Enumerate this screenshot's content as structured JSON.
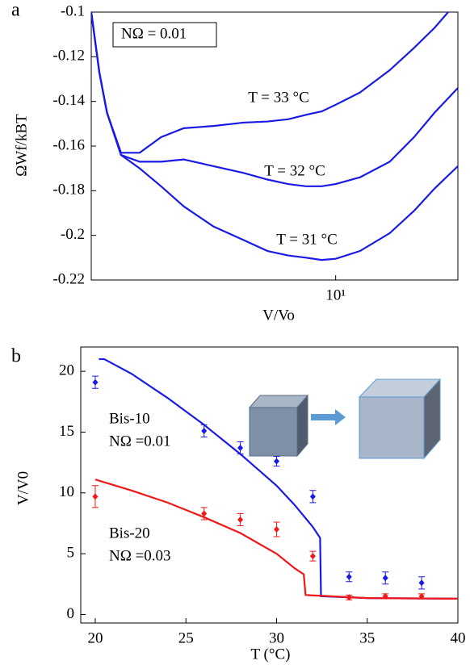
{
  "chart_data": [
    {
      "type": "line",
      "panel_label": "a",
      "xscale": "log",
      "x_label": "V/Vo",
      "y_label": "ΩWf/kBT",
      "annotation": "NΩ = 0.01",
      "xlim": [
        1.6,
        25
      ],
      "xticks": [
        {
          "value": 10,
          "label": "10¹"
        }
      ],
      "ylim": [
        -0.22,
        -0.1
      ],
      "yticks": [
        -0.22,
        -0.2,
        -0.18,
        -0.16,
        -0.14,
        -0.12,
        -0.1
      ],
      "x": [
        1.6,
        1.7,
        1.8,
        2,
        2.3,
        2.7,
        3.2,
        4,
        5,
        6,
        7,
        8,
        9,
        10,
        12,
        15,
        18,
        21,
        25
      ],
      "series": [
        {
          "name": "T = 33 °C",
          "color": "#1a1ae6",
          "values": [
            -0.1,
            -0.127,
            -0.145,
            -0.163,
            -0.163,
            -0.156,
            -0.152,
            -0.151,
            -0.1495,
            -0.149,
            -0.148,
            -0.146,
            -0.1445,
            -0.1415,
            -0.136,
            -0.126,
            -0.116,
            -0.107,
            -0.095
          ]
        },
        {
          "name": "T = 32 °C",
          "color": "#1a1ae6",
          "values": [
            -0.1,
            -0.127,
            -0.145,
            -0.164,
            -0.167,
            -0.167,
            -0.166,
            -0.169,
            -0.172,
            -0.175,
            -0.177,
            -0.178,
            -0.178,
            -0.177,
            -0.174,
            -0.167,
            -0.156,
            -0.145,
            -0.134
          ]
        },
        {
          "name": "T = 31 °C",
          "color": "#1a1ae6",
          "values": [
            -0.1,
            -0.127,
            -0.145,
            -0.164,
            -0.17,
            -0.178,
            -0.187,
            -0.196,
            -0.202,
            -0.207,
            -0.209,
            -0.21,
            -0.211,
            -0.2105,
            -0.207,
            -0.199,
            -0.189,
            -0.179,
            -0.169
          ]
        }
      ]
    },
    {
      "type": "line",
      "panel_label": "b",
      "x_label": "T (°C)",
      "y_label": "V/V0",
      "xlim": [
        19.2,
        40
      ],
      "xticks": [
        20,
        25,
        30,
        35,
        40
      ],
      "ylim": [
        -0.7,
        22
      ],
      "yticks": [
        0,
        5,
        10,
        15,
        20
      ],
      "series": [
        {
          "name": "Bis-10",
          "annotation": "NΩ =0.01",
          "color": "#1a1ae6",
          "x": [
            20.2,
            20.5,
            22,
            24,
            26,
            28,
            30,
            31,
            32,
            32.4,
            32.45,
            35,
            40
          ],
          "values": [
            21,
            21,
            19.8,
            17.8,
            15.6,
            13.2,
            10.6,
            9,
            7.2,
            6.3,
            1.5,
            1.35,
            1.3
          ],
          "points_x": [
            20,
            26,
            28,
            30,
            32,
            34,
            36,
            38
          ],
          "points_values": [
            19.1,
            15.1,
            13.7,
            12.6,
            9.7,
            3.1,
            3.0,
            2.6
          ],
          "points_errors": [
            0.5,
            0.5,
            0.5,
            0.4,
            0.5,
            0.4,
            0.5,
            0.5
          ]
        },
        {
          "name": "Bis-20",
          "annotation": "NΩ =0.03",
          "color": "#f01818",
          "x": [
            20,
            22,
            24,
            26,
            28,
            30,
            31,
            31.5,
            31.6,
            33,
            35,
            40
          ],
          "values": [
            11.1,
            10.2,
            9.2,
            8.0,
            6.7,
            5.0,
            3.8,
            3.3,
            1.6,
            1.5,
            1.35,
            1.3
          ],
          "points_x": [
            20,
            26,
            28,
            30,
            32,
            34,
            36,
            38
          ],
          "points_values": [
            9.7,
            8.3,
            7.8,
            7.0,
            4.8,
            1.4,
            1.5,
            1.5
          ],
          "points_errors": [
            0.9,
            0.5,
            0.5,
            0.6,
            0.4,
            0.2,
            0.2,
            0.2
          ]
        }
      ]
    }
  ]
}
